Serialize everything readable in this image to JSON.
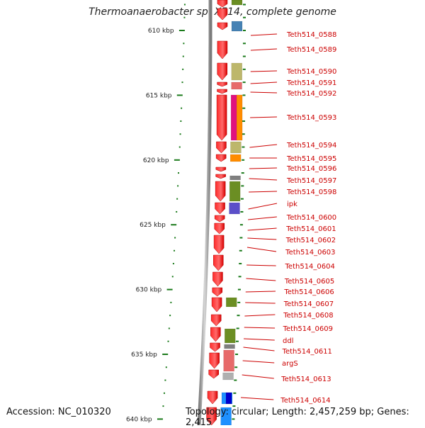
{
  "title": "Thermoanaerobacter sp. X514, complete genome",
  "accession": "Accession: NC_010320",
  "summary": "Topology: circular; Length: 2,457,259 bp; Genes: 2,415",
  "colors": {
    "backbone": "#9a9a9a",
    "gene_fill": "#ee0000",
    "label": "#cc0000",
    "tick": "#1a7a1a"
  },
  "axis": {
    "unit": "kbp",
    "tick_labels": [
      "610 kbp",
      "615 kbp",
      "620 kbp",
      "625 kbp",
      "630 kbp",
      "635 kbp",
      "640 kbp"
    ]
  },
  "genes": [
    "Teth514_0588",
    "Teth514_0589",
    "Teth514_0590",
    "Teth514_0591",
    "Teth514_0592",
    "Teth514_0593",
    "Teth514_0594",
    "Teth514_0595",
    "Teth514_0596",
    "Teth514_0597",
    "Teth514_0598",
    "ipk",
    "Teth514_0600",
    "Teth514_0601",
    "Teth514_0602",
    "Teth514_0603",
    "Teth514_0604",
    "Teth514_0605",
    "Teth514_0606",
    "Teth514_0607",
    "Teth514_0608",
    "Teth514_0609",
    "ddl",
    "Teth514_0611",
    "argS",
    "Teth514_0613",
    "Teth514_0614"
  ],
  "cog_colors": [
    "#6b8e23",
    "#bdb76b",
    "#e76a6a",
    "#ff8c00",
    "#e0117f",
    "#4682b4",
    "#808080",
    "#5b4fc9",
    "#1e90ff",
    "#0000cd",
    "#b0b0b0"
  ]
}
